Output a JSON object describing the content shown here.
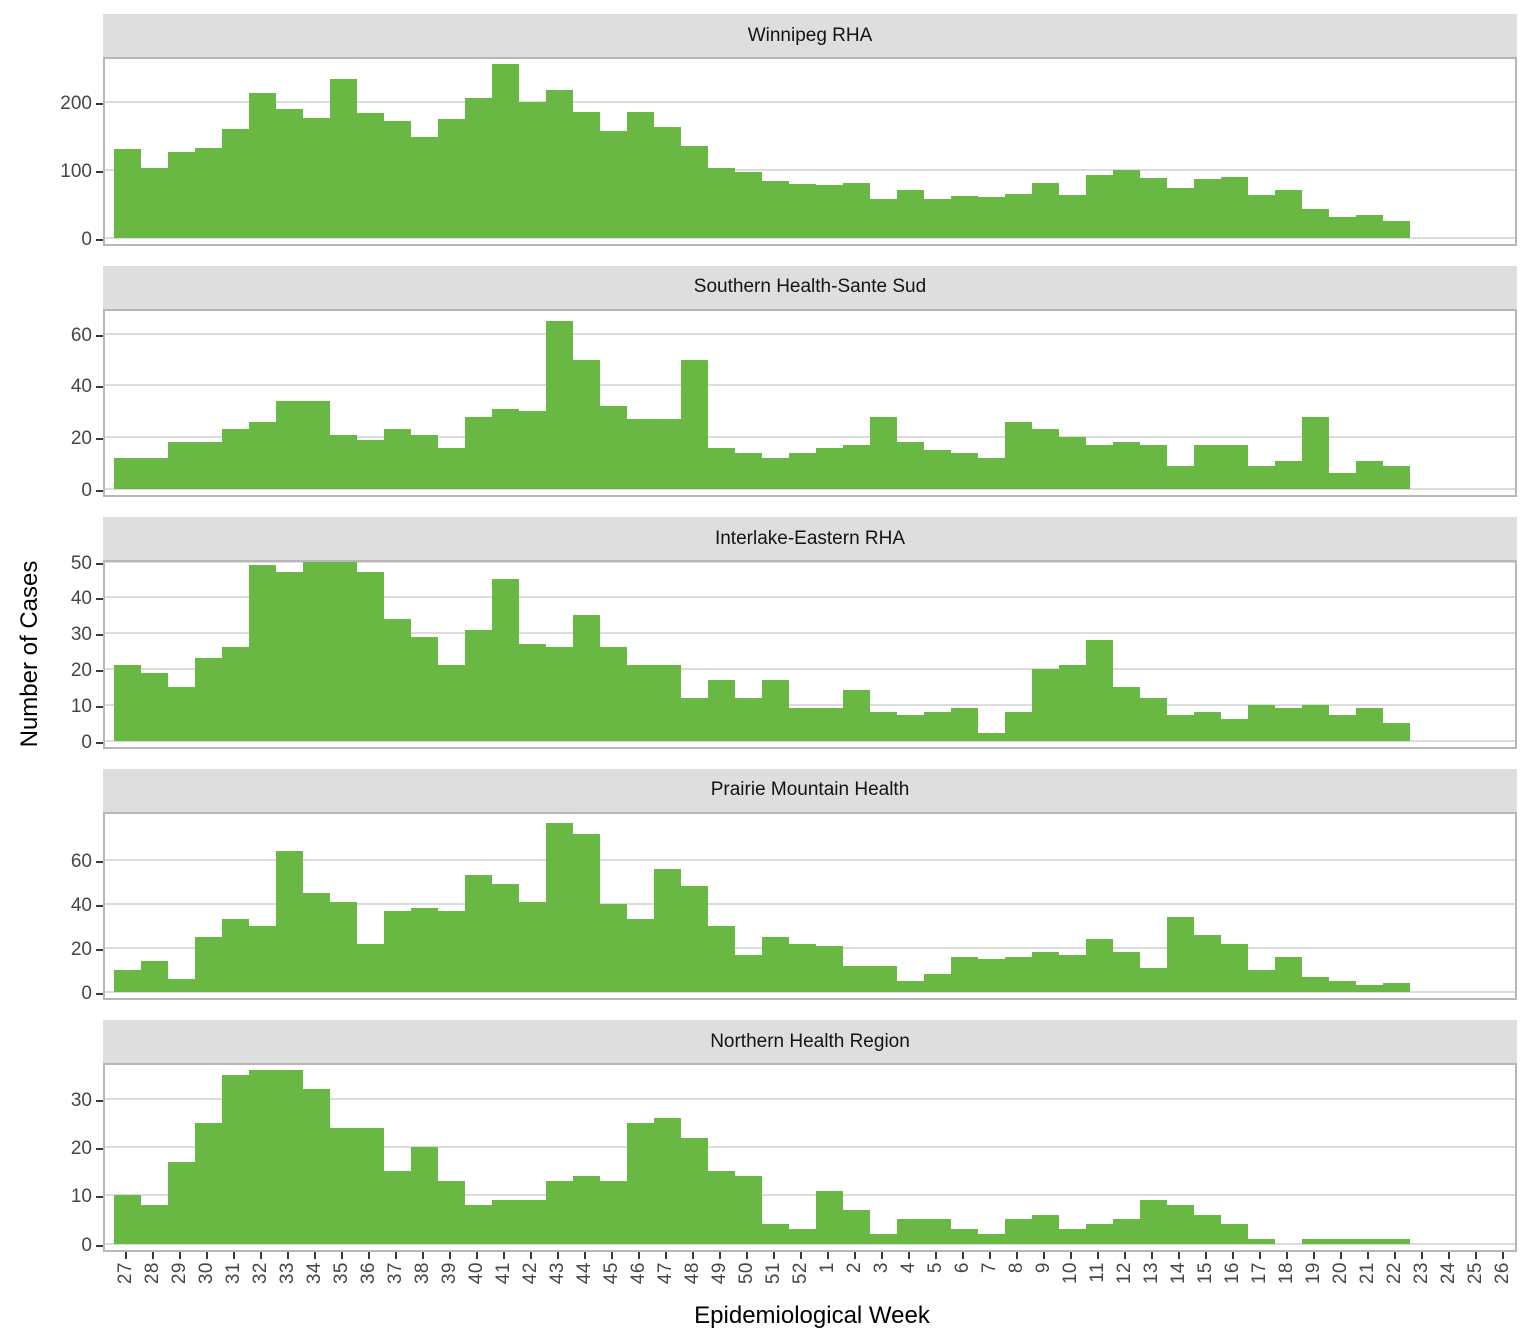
{
  "chart_data": {
    "type": "bar",
    "title": "",
    "xlabel": "Epidemiological Week",
    "ylabel": "Number of Cases",
    "legend": false,
    "grid": true,
    "bar_color": "#68b843",
    "strip_color": "#dedede",
    "gridline_color": "#dcdcdc",
    "axis_text_color": "#464646",
    "categories": [
      "27",
      "28",
      "29",
      "30",
      "31",
      "32",
      "33",
      "34",
      "35",
      "36",
      "37",
      "38",
      "39",
      "40",
      "41",
      "42",
      "43",
      "44",
      "45",
      "46",
      "47",
      "48",
      "49",
      "50",
      "51",
      "52",
      "1",
      "2",
      "3",
      "4",
      "5",
      "6",
      "7",
      "8",
      "9",
      "10",
      "11",
      "12",
      "13",
      "14",
      "15",
      "16",
      "17",
      "18",
      "19",
      "20",
      "21",
      "22",
      "23",
      "24",
      "25",
      "26"
    ],
    "facets": [
      {
        "title": "Winnipeg RHA",
        "yticks": [
          0,
          100,
          200
        ],
        "ylim": [
          0,
          270
        ],
        "values": [
          131,
          103,
          127,
          133,
          160,
          214,
          190,
          177,
          235,
          184,
          172,
          148,
          176,
          207,
          256,
          201,
          218,
          185,
          157,
          185,
          163,
          136,
          103,
          97,
          84,
          79,
          77,
          80,
          57,
          70,
          57,
          62,
          60,
          64,
          81,
          63,
          93,
          100,
          88,
          73,
          87,
          90,
          63,
          70,
          42,
          31,
          33,
          24,
          0,
          0,
          0,
          0
        ]
      },
      {
        "title": "Southern Health-Sante Sud",
        "yticks": [
          0,
          20,
          40,
          60
        ],
        "ylim": [
          0,
          70.5
        ],
        "values": [
          12,
          12,
          18,
          18,
          23,
          26,
          34,
          34,
          21,
          19,
          23,
          21,
          16,
          28,
          31,
          30,
          65,
          50,
          32,
          27,
          27,
          50,
          16,
          14,
          12,
          14,
          16,
          17,
          28,
          18,
          15,
          14,
          12,
          26,
          23,
          20,
          17,
          18,
          17,
          9,
          17,
          17,
          9,
          11,
          28,
          6,
          11,
          9,
          0,
          0,
          0,
          0
        ]
      },
      {
        "title": "Interlake-Eastern RHA",
        "yticks": [
          0,
          10,
          20,
          30,
          40,
          50
        ],
        "ylim": [
          0,
          51
        ],
        "values": [
          21,
          19,
          15,
          23,
          26,
          49,
          47,
          50,
          50,
          47,
          34,
          29,
          21,
          31,
          45,
          27,
          26,
          35,
          26,
          21,
          21,
          12,
          17,
          12,
          17,
          9,
          9,
          14,
          8,
          7,
          8,
          9,
          2,
          8,
          20,
          21,
          28,
          15,
          12,
          7,
          8,
          6,
          10,
          9,
          10,
          7,
          9,
          5,
          0,
          0,
          0,
          0
        ]
      },
      {
        "title": "Prairie Mountain Health",
        "yticks": [
          0,
          20,
          40,
          60
        ],
        "ylim": [
          0,
          83
        ],
        "values": [
          10,
          14,
          6,
          25,
          33,
          30,
          64,
          45,
          41,
          22,
          37,
          38,
          37,
          53,
          49,
          41,
          77,
          72,
          40,
          33,
          56,
          48,
          30,
          17,
          25,
          22,
          21,
          12,
          12,
          5,
          8,
          16,
          15,
          16,
          18,
          17,
          24,
          18,
          11,
          34,
          26,
          22,
          10,
          16,
          7,
          5,
          3,
          4,
          0,
          0,
          0,
          0
        ]
      },
      {
        "title": "Northern Health Region",
        "yticks": [
          0,
          10,
          20,
          30
        ],
        "ylim": [
          0,
          37.9
        ],
        "values": [
          10,
          8,
          17,
          25,
          35,
          36,
          36,
          32,
          24,
          24,
          15,
          20,
          13,
          8,
          9,
          9,
          13,
          14,
          13,
          25,
          26,
          22,
          15,
          14,
          4,
          3,
          11,
          7,
          2,
          5,
          5,
          3,
          2,
          5,
          6,
          3,
          4,
          5,
          9,
          8,
          6,
          4,
          1,
          0,
          1,
          1,
          1,
          1,
          0,
          0,
          0,
          0
        ]
      }
    ]
  }
}
